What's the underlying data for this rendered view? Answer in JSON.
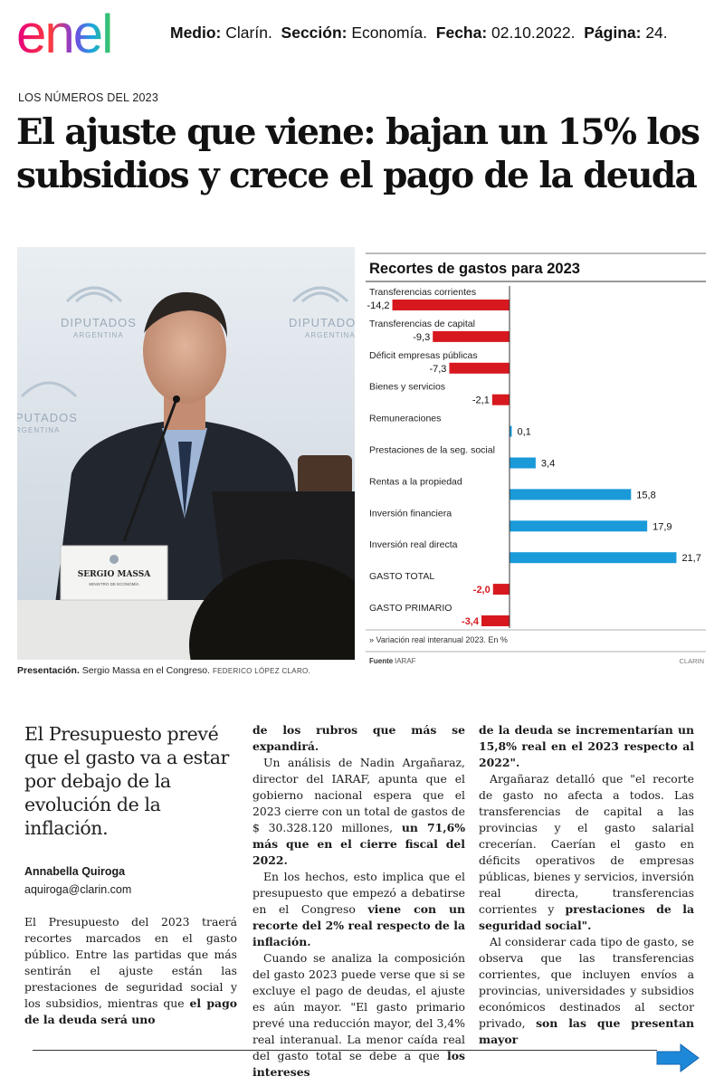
{
  "logo": {
    "text": "enel"
  },
  "meta": {
    "medio_label": "Medio:",
    "medio": "Clarín.",
    "seccion_label": "Sección:",
    "seccion": "Economía.",
    "fecha_label": "Fecha:",
    "fecha": "02.10.2022.",
    "pagina_label": "Página:",
    "pagina": "24."
  },
  "article": {
    "kicker": "LOS NÚMEROS DEL 2023",
    "headline": "El ajuste que viene: bajan un 15% los subsidios y crece el pago de la deuda",
    "caption_bold": "Presentación.",
    "caption": " Sergio Massa en el Congreso.",
    "caption_credit": "FEDERICO LÓPEZ CLARO.",
    "photo_text": {
      "wall1": "DIPUTADOS",
      "wall1b": "ARGENTINA",
      "wall2": "DIPUTADOS",
      "wall2b": "ARGENTINA",
      "wall3": "PUTADOS",
      "wall3b": "RGENTINA",
      "nameplate": "SERGIO MASSA",
      "nameplate_sub": "MINISTRO DE ECONOMÍA"
    },
    "deck": "El Presupuesto prevé que el gasto va a estar por debajo de la evolución de la inflación.",
    "author": "Annabella Quiroga",
    "email": "aquiroga@clarin.com",
    "col1_p1": "El Presupuesto del 2023 traerá recortes marcados en el gasto público. Entre las partidas que más sentirán el ajuste están las prestaciones de seguridad social y los subsidios, mientras que ",
    "col1_p1_bold": "el pago de la deuda será uno",
    "col2_lead_bold": "de los rubros que más se expandirá.",
    "col2_p1": "Un análisis de Nadin Argañaraz, director del IARAF, apunta que el gobierno nacional espera que el 2023 cierre con un total de gastos de $ 30.328.120 millones, ",
    "col2_p1_bold": "un 71,6% más que en el cierre fiscal del 2022.",
    "col2_p2": "En los hechos, esto implica que el presupuesto que empezó a debatirse en el Congreso ",
    "col2_p2_bold": "viene con un recorte del 2% real respecto de la inflación.",
    "col2_p3": "Cuando se analiza la composición del gasto 2023 puede verse que si se excluye el pago de deudas, el ajuste es aún mayor. \"El gasto primario prevé una reducción mayor, del 3,4% real interanual. La menor caída real del gasto total se debe a que ",
    "col2_p3_bold": "los intereses",
    "col3_lead_bold": "de la deuda se incrementarían un 15,8% real en el 2023 respecto al 2022\".",
    "col3_p1": "Argañaraz detalló que \"el recorte de gasto no afecta a todos. Las transferencias de capital a las provincias y el gasto salarial crecerían. Caerían el gasto en déficits operativos de empresas públicas, bienes y servicios, inversión real directa, transferencias corrientes y ",
    "col3_p1_bold": "prestaciones de la seguridad social\".",
    "col3_p2": "Al considerar cada tipo de gasto, se observa que las transferencias corrientes, que incluyen envíos a provincias, universidades y subsidios económicos destinados al sector privado, ",
    "col3_p2_bold": "son las que presentan mayor"
  },
  "chart_data": {
    "type": "bar",
    "orientation": "horizontal",
    "title": "Recortes de gastos para 2023",
    "categories": [
      "Transferencias corrientes",
      "Transferencias de capital",
      "Déficit empresas públicas",
      "Bienes y servicios",
      "Remuneraciones",
      "Prestaciones de la seg. social",
      "Rentas a la propiedad",
      "Inversión financiera",
      "Inversión real directa",
      "GASTO TOTAL",
      "GASTO PRIMARIO"
    ],
    "values": [
      -14.2,
      -9.3,
      -7.3,
      -2.1,
      0.1,
      3.4,
      15.8,
      17.9,
      21.7,
      -2.0,
      -3.4
    ],
    "labels": [
      "-14,2",
      "-9,3",
      "-7,3",
      "-2,1",
      "0,1",
      "3,4",
      "15,8",
      "17,9",
      "21,7",
      "-2,0",
      "-3,4"
    ],
    "xlim": [
      -17,
      22
    ],
    "negative_color": "#d7191f",
    "positive_color": "#1b9ad9",
    "note": "» Variación real interanual 2023. En %",
    "source_label": "Fuente",
    "source": "IARAF",
    "credit": "CLARIN"
  },
  "colors": {
    "arrow": "#1e88d8"
  }
}
